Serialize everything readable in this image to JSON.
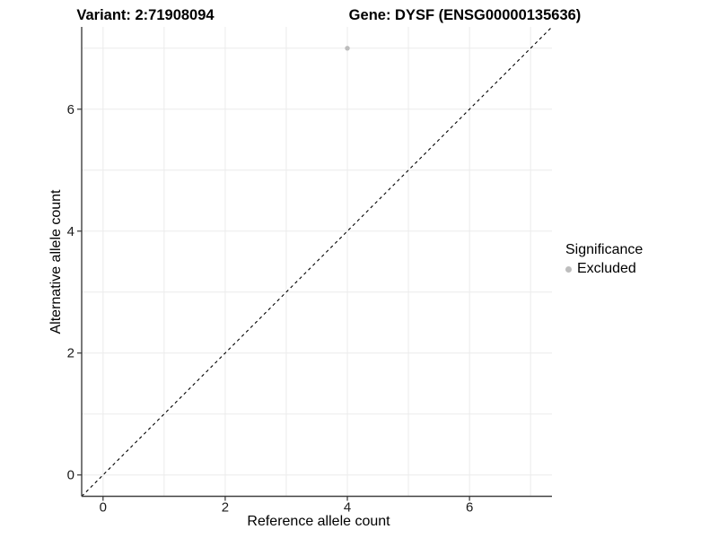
{
  "figure": {
    "title_left": "Variant: 2:71908094",
    "title_right": "Gene: DYSF (ENSG00000135636)"
  },
  "chart_data": {
    "type": "scatter",
    "title": "Variant: 2:71908094    Gene: DYSF (ENSG00000135636)",
    "xlabel": "Reference allele count",
    "ylabel": "Alternative allele count",
    "xlim": [
      -0.35,
      7.35
    ],
    "ylim": [
      -0.35,
      7.35
    ],
    "x_ticks": [
      0,
      2,
      4,
      6
    ],
    "y_ticks": [
      0,
      2,
      4,
      6
    ],
    "grid_lines_x": [
      0,
      1,
      2,
      3,
      4,
      5,
      6,
      7
    ],
    "grid_lines_y": [
      0,
      1,
      2,
      3,
      4,
      5,
      6,
      7
    ],
    "grid": true,
    "points": [
      {
        "x": 4,
        "y": 7,
        "significance": "Excluded"
      }
    ],
    "reference_line": {
      "type": "identity",
      "x1": -0.35,
      "y1": -0.35,
      "x2": 7.35,
      "y2": 7.35,
      "style": "dashed",
      "color": "#000000"
    },
    "legend": {
      "title": "Significance",
      "position": "right",
      "items": [
        {
          "label": "Excluded",
          "color": "#bdbdbd",
          "marker": "circle"
        }
      ]
    },
    "colors": {
      "grid": "#ebebeb",
      "axis_line": "#404040",
      "tick_mark": "#333333",
      "tick_text": "#1a1a1a",
      "background": "#ffffff"
    }
  }
}
